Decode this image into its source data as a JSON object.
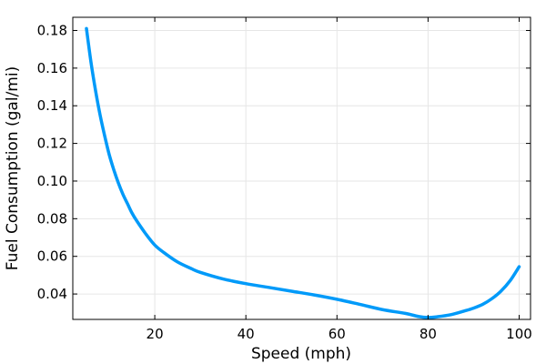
{
  "chart_data": {
    "type": "line",
    "title": "",
    "xlabel": "Speed (mph)",
    "ylabel": "Fuel Consumption (gal/mi)",
    "xlim": [
      2,
      102.5
    ],
    "ylim": [
      0.0265,
      0.187
    ],
    "xticks": [
      20,
      40,
      60,
      80,
      100
    ],
    "yticks": [
      0.04,
      0.06,
      0.08,
      0.1,
      0.12,
      0.14,
      0.16,
      0.18
    ],
    "xtick_labels": [
      "20",
      "40",
      "60",
      "80",
      "100"
    ],
    "ytick_labels": [
      "0.04",
      "0.06",
      "0.08",
      "0.10",
      "0.12",
      "0.14",
      "0.16",
      "0.18"
    ],
    "grid": true,
    "legend": "none",
    "series": [
      {
        "color": "#009af9",
        "x": [
          5,
          6,
          7,
          8,
          9,
          10,
          11,
          12,
          13,
          14,
          15,
          16,
          18,
          20,
          22,
          25,
          28,
          30,
          35,
          40,
          45,
          50,
          55,
          60,
          65,
          70,
          75,
          78,
          80,
          82,
          85,
          88,
          90,
          92,
          94,
          96,
          98,
          100
        ],
        "y": [
          0.181,
          0.163,
          0.148,
          0.135,
          0.124,
          0.114,
          0.106,
          0.099,
          0.093,
          0.088,
          0.083,
          0.079,
          0.072,
          0.066,
          0.062,
          0.057,
          0.0535,
          0.0515,
          0.048,
          0.0455,
          0.0435,
          0.0415,
          0.0395,
          0.0372,
          0.0345,
          0.0317,
          0.0297,
          0.028,
          0.0275,
          0.0279,
          0.029,
          0.031,
          0.0325,
          0.0345,
          0.0375,
          0.0415,
          0.047,
          0.0545
        ]
      }
    ]
  }
}
